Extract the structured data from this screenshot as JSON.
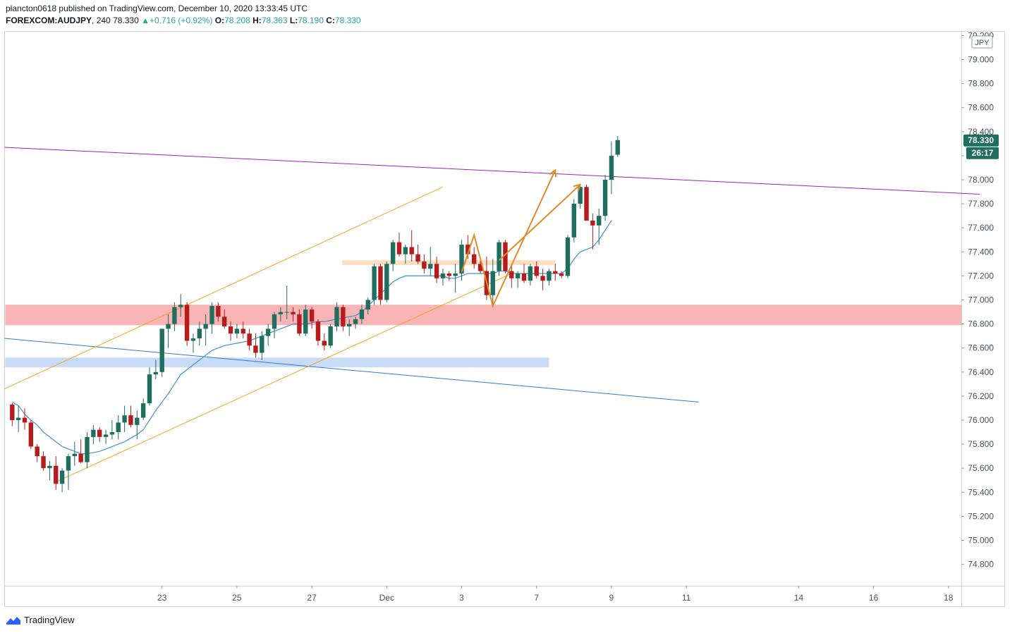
{
  "header": {
    "line1": "plancton0618 published on TradingView.com, December 10, 2020 13:33:45 UTC",
    "symbol": "FOREXCOM:AUDJPY",
    "interval": "240",
    "last": "78.330",
    "change": "+0.716 (+0.92%)",
    "o_label": "O:",
    "o_val": "78.208",
    "h_label": "H:",
    "h_val": "78.363",
    "l_label": "L:",
    "l_val": "78.190",
    "c_label": "C:",
    "c_val": "78.330"
  },
  "footer": {
    "brand": "TradingView"
  },
  "colors": {
    "bull": "#1f6e5e",
    "bear": "#b71c1c",
    "ma": "#3d8fd8",
    "channel": "#f5a21b",
    "purple_line": "#9c27b0",
    "blue_line": "#2e7ad1",
    "red_zone": "#f8a8a8",
    "blue_zone": "#b5cff5",
    "orange_zone": "#fcd3ab",
    "path": "#e08a2a",
    "price_badge": "#1f6e5e"
  },
  "chart_data": {
    "type": "candlestick",
    "symbol": "FOREXCOM:AUDJPY",
    "interval": "240",
    "currency": "JPY",
    "price_ticks": [
      74.8,
      75.0,
      75.2,
      75.4,
      75.6,
      75.8,
      76.0,
      76.2,
      76.4,
      76.6,
      76.8,
      77.0,
      77.2,
      77.4,
      77.6,
      77.8,
      78.0,
      78.2,
      78.4,
      78.6,
      78.8,
      79.0,
      79.2
    ],
    "x_tick_labels": [
      {
        "i": 24,
        "label": "23"
      },
      {
        "i": 36,
        "label": "25"
      },
      {
        "i": 48,
        "label": "27"
      },
      {
        "i": 60,
        "label": "Dec"
      },
      {
        "i": 72,
        "label": "3"
      },
      {
        "i": 84,
        "label": "7"
      },
      {
        "i": 96,
        "label": "9"
      },
      {
        "i": 108,
        "label": "11"
      },
      {
        "i": 126,
        "label": "14"
      },
      {
        "i": 138,
        "label": "16"
      },
      {
        "i": 150,
        "label": "18"
      }
    ],
    "last_price": "78.330",
    "countdown": "26:17",
    "candles_ohlc": [
      [
        76.13,
        76.14,
        75.95,
        76.0
      ],
      [
        76.0,
        76.12,
        75.9,
        76.02
      ],
      [
        76.02,
        76.1,
        75.92,
        75.98
      ],
      [
        75.98,
        76.0,
        75.76,
        75.78
      ],
      [
        75.78,
        75.8,
        75.65,
        75.7
      ],
      [
        75.7,
        75.74,
        75.58,
        75.6
      ],
      [
        75.6,
        75.66,
        75.5,
        75.62
      ],
      [
        75.62,
        75.7,
        75.42,
        75.47
      ],
      [
        75.47,
        75.6,
        75.4,
        75.58
      ],
      [
        75.58,
        75.72,
        75.42,
        75.7
      ],
      [
        75.7,
        75.82,
        75.62,
        75.72
      ],
      [
        75.72,
        75.84,
        75.64,
        75.65
      ],
      [
        75.65,
        75.9,
        75.6,
        75.86
      ],
      [
        75.86,
        75.96,
        75.8,
        75.92
      ],
      [
        75.92,
        75.94,
        75.82,
        75.86
      ],
      [
        75.86,
        75.92,
        75.8,
        75.88
      ],
      [
        75.88,
        76.0,
        75.84,
        75.9
      ],
      [
        75.9,
        76.04,
        75.84,
        75.98
      ],
      [
        75.98,
        76.12,
        75.9,
        76.04
      ],
      [
        76.04,
        76.12,
        75.94,
        75.96
      ],
      [
        75.96,
        76.08,
        75.84,
        76.02
      ],
      [
        76.02,
        76.18,
        76.0,
        76.14
      ],
      [
        76.14,
        76.44,
        76.12,
        76.38
      ],
      [
        76.38,
        76.5,
        76.34,
        76.4
      ],
      [
        76.4,
        76.74,
        76.36,
        76.76
      ],
      [
        76.76,
        76.88,
        76.6,
        76.8
      ],
      [
        76.8,
        76.98,
        76.74,
        76.94
      ],
      [
        76.94,
        77.05,
        76.86,
        76.96
      ],
      [
        76.96,
        76.98,
        76.62,
        76.66
      ],
      [
        76.66,
        76.72,
        76.56,
        76.68
      ],
      [
        76.68,
        76.82,
        76.62,
        76.76
      ],
      [
        76.76,
        76.88,
        76.62,
        76.8
      ],
      [
        76.8,
        76.98,
        76.72,
        76.95
      ],
      [
        76.95,
        76.98,
        76.82,
        76.86
      ],
      [
        76.86,
        76.92,
        76.76,
        76.78
      ],
      [
        76.78,
        76.82,
        76.66,
        76.72
      ],
      [
        76.72,
        76.8,
        76.68,
        76.76
      ],
      [
        76.76,
        76.82,
        76.68,
        76.72
      ],
      [
        76.72,
        76.76,
        76.58,
        76.62
      ],
      [
        76.62,
        76.72,
        76.52,
        76.56
      ],
      [
        76.56,
        76.74,
        76.5,
        76.7
      ],
      [
        76.7,
        76.8,
        76.62,
        76.76
      ],
      [
        76.76,
        76.9,
        76.68,
        76.88
      ],
      [
        76.88,
        76.94,
        76.82,
        76.9
      ],
      [
        76.9,
        77.12,
        76.84,
        76.9
      ],
      [
        76.9,
        76.94,
        76.82,
        76.88
      ],
      [
        76.88,
        76.92,
        76.7,
        76.72
      ],
      [
        76.72,
        76.96,
        76.7,
        76.92
      ],
      [
        76.92,
        76.94,
        76.76,
        76.82
      ],
      [
        76.82,
        76.84,
        76.62,
        76.66
      ],
      [
        76.66,
        76.72,
        76.58,
        76.62
      ],
      [
        76.62,
        76.8,
        76.6,
        76.78
      ],
      [
        76.78,
        76.98,
        76.74,
        76.94
      ],
      [
        76.94,
        76.96,
        76.74,
        76.78
      ],
      [
        76.78,
        76.84,
        76.7,
        76.8
      ],
      [
        76.8,
        76.86,
        76.76,
        76.84
      ],
      [
        76.84,
        76.96,
        76.8,
        76.92
      ],
      [
        76.92,
        77.02,
        76.88,
        77.0
      ],
      [
        77.0,
        77.3,
        76.96,
        77.28
      ],
      [
        77.28,
        77.3,
        76.96,
        77.0
      ],
      [
        77.0,
        77.32,
        76.98,
        77.3
      ],
      [
        77.3,
        77.5,
        77.24,
        77.48
      ],
      [
        77.48,
        77.56,
        77.36,
        77.38
      ],
      [
        77.38,
        77.46,
        77.3,
        77.44
      ],
      [
        77.44,
        77.58,
        77.32,
        77.38
      ],
      [
        77.38,
        77.46,
        77.3,
        77.32
      ],
      [
        77.32,
        77.38,
        77.22,
        77.26
      ],
      [
        77.26,
        77.44,
        77.2,
        77.3
      ],
      [
        77.3,
        77.36,
        77.14,
        77.18
      ],
      [
        77.18,
        77.26,
        77.12,
        77.22
      ],
      [
        77.22,
        77.24,
        77.16,
        77.2
      ],
      [
        77.2,
        77.3,
        77.06,
        77.22
      ],
      [
        77.22,
        77.5,
        77.16,
        77.46
      ],
      [
        77.46,
        77.54,
        77.34,
        77.38
      ],
      [
        77.38,
        77.44,
        77.26,
        77.3
      ],
      [
        77.3,
        77.34,
        77.22,
        77.24
      ],
      [
        77.24,
        77.36,
        77.0,
        77.04
      ],
      [
        77.04,
        77.34,
        76.94,
        77.24
      ],
      [
        77.24,
        77.5,
        77.2,
        77.48
      ],
      [
        77.48,
        77.5,
        77.22,
        77.24
      ],
      [
        77.24,
        77.3,
        77.1,
        77.18
      ],
      [
        77.18,
        77.24,
        77.1,
        77.22
      ],
      [
        77.22,
        77.3,
        77.14,
        77.16
      ],
      [
        77.16,
        77.3,
        77.12,
        77.28
      ],
      [
        77.28,
        77.32,
        77.18,
        77.2
      ],
      [
        77.2,
        77.26,
        77.08,
        77.16
      ],
      [
        77.16,
        77.26,
        77.12,
        77.24
      ],
      [
        77.24,
        77.3,
        77.16,
        77.22
      ],
      [
        77.22,
        77.24,
        77.18,
        77.2
      ],
      [
        77.2,
        77.54,
        77.18,
        77.52
      ],
      [
        77.52,
        77.84,
        77.48,
        77.8
      ],
      [
        77.8,
        77.96,
        77.76,
        77.94
      ],
      [
        77.94,
        77.96,
        77.7,
        77.66
      ],
      [
        77.66,
        77.72,
        77.42,
        77.62
      ],
      [
        77.62,
        77.76,
        77.46,
        77.7
      ],
      [
        77.7,
        78.04,
        77.66,
        78.0
      ],
      [
        78.0,
        78.32,
        77.88,
        78.2
      ],
      [
        78.208,
        78.363,
        78.19,
        78.33
      ]
    ],
    "ma_series": [
      76.15,
      76.12,
      76.05,
      76.0,
      75.96,
      75.9,
      75.86,
      75.82,
      75.78,
      75.76,
      75.74,
      75.72,
      75.72,
      75.73,
      75.74,
      75.76,
      75.78,
      75.8,
      75.82,
      75.85,
      75.88,
      75.92,
      76.0,
      76.08,
      76.15,
      76.22,
      76.3,
      76.38,
      76.42,
      76.46,
      76.5,
      76.54,
      76.58,
      76.6,
      76.62,
      76.63,
      76.64,
      76.65,
      76.66,
      76.68,
      76.7,
      76.72,
      76.74,
      76.76,
      76.78,
      76.8,
      76.8,
      76.8,
      76.81,
      76.82,
      76.82,
      76.83,
      76.84,
      76.85,
      76.86,
      76.87,
      76.9,
      76.95,
      77.0,
      77.05,
      77.1,
      77.15,
      77.18,
      77.2,
      77.2,
      77.2,
      77.2,
      77.2,
      77.2,
      77.2,
      77.18,
      77.18,
      77.2,
      77.22,
      77.22,
      77.22,
      77.22,
      77.22,
      77.24,
      77.24,
      77.22,
      77.22,
      77.22,
      77.22,
      77.22,
      77.22,
      77.22,
      77.22,
      77.22,
      77.26,
      77.34,
      77.4,
      77.42,
      77.44,
      77.5,
      77.58,
      77.66
    ],
    "lines": [
      {
        "name": "purple_trend",
        "x0": 0,
        "y0": 78.27,
        "x1": 155,
        "y1": 77.88
      },
      {
        "name": "blue_trend",
        "x0": 0,
        "y0": 76.68,
        "x1": 110,
        "y1": 76.15
      },
      {
        "name": "channel_upper",
        "x0": 0,
        "y0": 76.26,
        "x1": 69,
        "y1": 77.94
      },
      {
        "name": "channel_lower",
        "x0": 8,
        "y0": 75.48,
        "x1": 80,
        "y1": 77.22
      }
    ],
    "zones": [
      {
        "name": "red_resistance",
        "x0": 0,
        "x1": 155,
        "y_top": 76.96,
        "y_bottom": 76.79
      },
      {
        "name": "blue_support",
        "x0": 0,
        "x1": 86,
        "y_top": 76.52,
        "y_bottom": 76.44
      },
      {
        "name": "orange_band",
        "x0": 54,
        "x1": 87,
        "y_top": 77.33,
        "y_bottom": 77.29
      }
    ],
    "projection_paths": [
      {
        "name": "zigzag",
        "points": [
          [
            72,
            77.23
          ],
          [
            74,
            77.54
          ],
          [
            77,
            76.95
          ],
          [
            87,
            78.08
          ]
        ]
      },
      {
        "name": "second_leg",
        "points": [
          [
            78,
            77.33
          ],
          [
            91,
            77.96
          ]
        ]
      }
    ]
  }
}
